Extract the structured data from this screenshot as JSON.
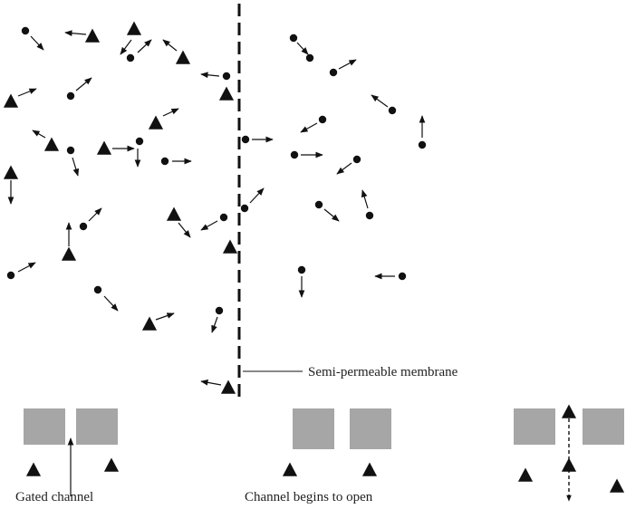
{
  "labels": {
    "membrane": "Semi-permeable membrane",
    "gated_channel": "Gated channel",
    "channel_opening": "Channel begins to open"
  },
  "colors": {
    "ink": "#111111",
    "channel_block": "#a6a6a6",
    "background": "#ffffff"
  },
  "particle_kinds": {
    "dot": "small-solute-dot",
    "triangle": "large-solute-triangle"
  },
  "channel_states": [
    "closed",
    "opening",
    "open"
  ]
}
